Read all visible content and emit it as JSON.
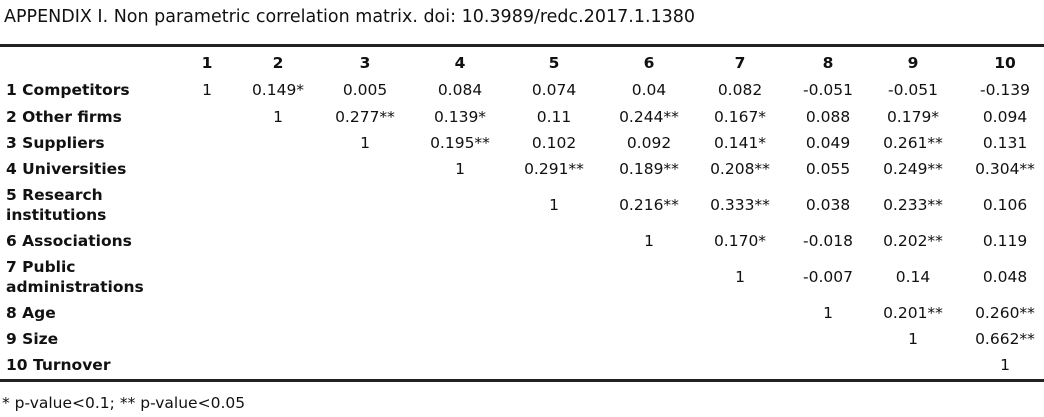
{
  "title": "APPENDIX I. Non parametric correlation matrix. doi: 10.3989/redc.2017.1.1380",
  "table": {
    "headers": [
      "",
      "1",
      "2",
      "3",
      "4",
      "5",
      "6",
      "7",
      "8",
      "9",
      "10"
    ],
    "rows": [
      {
        "label": "1 Competitors",
        "cells": [
          "1",
          "0.149*",
          "0.005",
          "0.084",
          "0.074",
          "0.04",
          "0.082",
          "-0.051",
          "-0.051",
          "-0.139"
        ]
      },
      {
        "label": "2 Other firms",
        "cells": [
          "",
          "1",
          "0.277**",
          "0.139*",
          "0.11",
          "0.244**",
          "0.167*",
          "0.088",
          "0.179*",
          "0.094"
        ]
      },
      {
        "label": "3 Suppliers",
        "cells": [
          "",
          "",
          "1",
          "0.195**",
          "0.102",
          "0.092",
          "0.141*",
          "0.049",
          "0.261**",
          "0.131"
        ]
      },
      {
        "label": "4 Universities",
        "cells": [
          "",
          "",
          "",
          "1",
          "0.291**",
          "0.189**",
          "0.208**",
          "0.055",
          "0.249**",
          "0.304**"
        ]
      },
      {
        "label": "5 Research institutions",
        "cells": [
          "",
          "",
          "",
          "",
          "1",
          "0.216**",
          "0.333**",
          "0.038",
          "0.233**",
          "0.106"
        ]
      },
      {
        "label": "6 Associations",
        "cells": [
          "",
          "",
          "",
          "",
          "",
          "1",
          "0.170*",
          "-0.018",
          "0.202**",
          "0.119"
        ]
      },
      {
        "label": "7 Public administrations",
        "cells": [
          "",
          "",
          "",
          "",
          "",
          "",
          "1",
          "-0.007",
          "0.14",
          "0.048"
        ]
      },
      {
        "label": "8 Age",
        "cells": [
          "",
          "",
          "",
          "",
          "",
          "",
          "",
          "1",
          "0.201**",
          "0.260**"
        ]
      },
      {
        "label": "9 Size",
        "cells": [
          "",
          "",
          "",
          "",
          "",
          "",
          "",
          "",
          "1",
          "0.662**"
        ]
      },
      {
        "label": "10 Turnover",
        "cells": [
          "",
          "",
          "",
          "",
          "",
          "",
          "",
          "",
          "",
          "1"
        ]
      }
    ]
  },
  "footnote": "* p-value<0.1; ** p-value<0.05"
}
